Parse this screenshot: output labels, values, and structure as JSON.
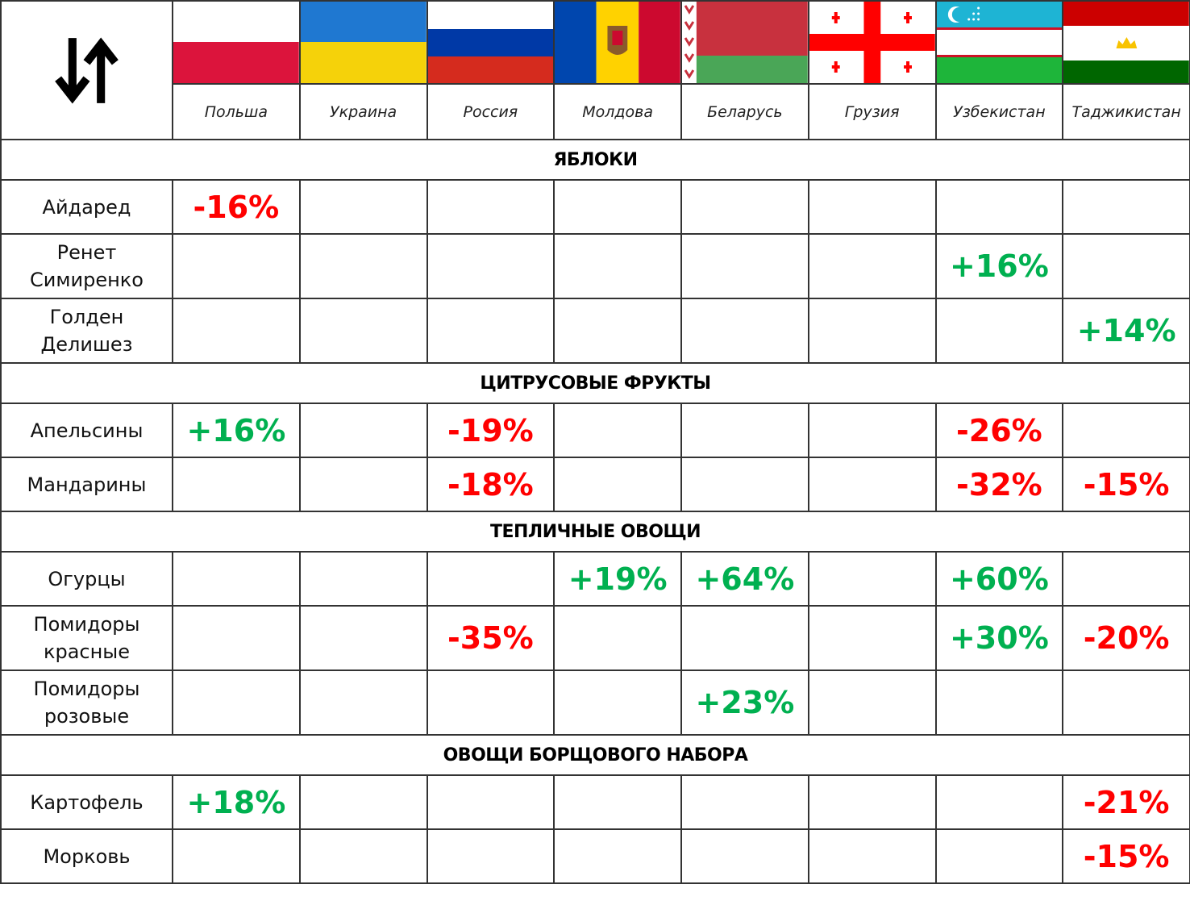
{
  "header": {
    "countries": [
      "Польша",
      "Украина",
      "Россия",
      "Молдова",
      "Беларусь",
      "Грузия",
      "Узбекистан",
      "Таджикистан"
    ]
  },
  "colors": {
    "increase": "#00b050",
    "decrease": "#ff0000"
  },
  "sections": [
    {
      "title": "ЯБЛОКИ",
      "rows": [
        {
          "label": "Айдаред",
          "values": [
            "-16%",
            null,
            null,
            null,
            null,
            null,
            null,
            null
          ]
        },
        {
          "label": "Ренет\nСимиренко",
          "values": [
            null,
            null,
            null,
            null,
            null,
            null,
            "+16%",
            null
          ]
        },
        {
          "label": "Голден\nДелишез",
          "values": [
            null,
            null,
            null,
            null,
            null,
            null,
            null,
            "+14%"
          ]
        }
      ]
    },
    {
      "title": "ЦИТРУСОВЫЕ ФРУКТЫ",
      "rows": [
        {
          "label": "Апельсины",
          "values": [
            "+16%",
            null,
            "-19%",
            null,
            null,
            null,
            "-26%",
            null
          ]
        },
        {
          "label": "Мандарины",
          "values": [
            null,
            null,
            "-18%",
            null,
            null,
            null,
            "-32%",
            "-15%"
          ]
        }
      ]
    },
    {
      "title": "ТЕПЛИЧНЫЕ ОВОЩИ",
      "rows": [
        {
          "label": "Огурцы",
          "values": [
            null,
            null,
            null,
            "+19%",
            "+64%",
            null,
            "+60%",
            null
          ]
        },
        {
          "label": "Помидоры\nкрасные",
          "values": [
            null,
            null,
            "-35%",
            null,
            null,
            null,
            "+30%",
            "-20%"
          ]
        },
        {
          "label": "Помидоры\nрозовые",
          "values": [
            null,
            null,
            null,
            null,
            "+23%",
            null,
            null,
            null
          ]
        }
      ]
    },
    {
      "title": "ОВОЩИ БОРЩОВОГО НАБОРА",
      "rows": [
        {
          "label": "Картофель",
          "values": [
            "+18%",
            null,
            null,
            null,
            null,
            null,
            null,
            "-21%"
          ]
        },
        {
          "label": "Морковь",
          "values": [
            null,
            null,
            null,
            null,
            null,
            null,
            null,
            "-15%"
          ]
        }
      ]
    }
  ]
}
